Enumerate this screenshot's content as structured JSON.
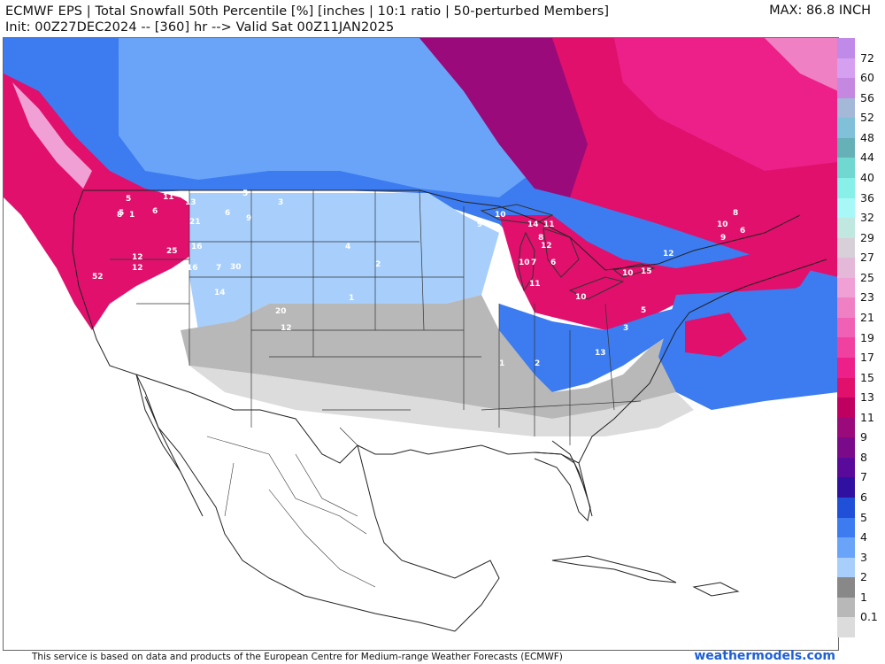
{
  "header": {
    "line1": "ECMWF EPS | Total Snowfall 50th Percentile [%] [inches | 10:1 ratio | 50-perturbed Members]",
    "line2": "Init: 00Z27DEC2024 -- [360] hr --> Valid Sat 00Z11JAN2025",
    "max_label": "MAX: 86.8 INCH"
  },
  "colorbar": {
    "labels": [
      "72",
      "60",
      "56",
      "52",
      "48",
      "44",
      "40",
      "36",
      "32",
      "29",
      "27",
      "25",
      "23",
      "21",
      "19",
      "17",
      "15",
      "13",
      "11",
      "9",
      "8",
      "7",
      "6",
      "5",
      "4",
      "3",
      "2",
      "1",
      "0.1"
    ],
    "colors": [
      "#c08ae8",
      "#d6a0f0",
      "#c488e0",
      "#a4b8d8",
      "#80c0d8",
      "#66b0b8",
      "#70d8d0",
      "#88f0e8",
      "#a8f8f8",
      "#c0e8e0",
      "#d8d0d8",
      "#e4b8d8",
      "#f0a0d4",
      "#f080c4",
      "#f060b4",
      "#f040a0",
      "#ec2088",
      "#e0106c",
      "#c00060",
      "#9a0a7a",
      "#7a0a8a",
      "#5a0a9a",
      "#3010a0",
      "#2050d8",
      "#3c7cf0",
      "#6aa4f8",
      "#a8cffc",
      "#888888",
      "#b8b8b8",
      "#dcdcdc"
    ]
  },
  "map": {
    "point_values": [
      {
        "v": "5"
      },
      {
        "v": "11"
      },
      {
        "v": "13"
      },
      {
        "v": "5"
      },
      {
        "v": "8"
      },
      {
        "v": "1"
      },
      {
        "v": "6"
      },
      {
        "v": "21"
      },
      {
        "v": "6"
      },
      {
        "v": "9"
      },
      {
        "v": "16"
      },
      {
        "v": "25"
      },
      {
        "v": "12"
      },
      {
        "v": "12"
      },
      {
        "v": "16"
      },
      {
        "v": "7"
      },
      {
        "v": "30"
      },
      {
        "v": "52"
      },
      {
        "v": "14"
      },
      {
        "v": "20"
      },
      {
        "v": "12"
      },
      {
        "v": "5"
      },
      {
        "v": "3"
      },
      {
        "v": "4"
      },
      {
        "v": "2"
      },
      {
        "v": "1"
      },
      {
        "v": "10"
      },
      {
        "v": "9"
      },
      {
        "v": "14"
      },
      {
        "v": "11"
      },
      {
        "v": "12"
      },
      {
        "v": "10"
      },
      {
        "v": "6"
      },
      {
        "v": "8"
      },
      {
        "v": "7"
      },
      {
        "v": "11"
      },
      {
        "v": "10"
      },
      {
        "v": "15"
      },
      {
        "v": "12"
      },
      {
        "v": "8"
      },
      {
        "v": "10"
      },
      {
        "v": "9"
      },
      {
        "v": "6"
      },
      {
        "v": "13"
      },
      {
        "v": "10"
      },
      {
        "v": "5"
      },
      {
        "v": "3"
      },
      {
        "v": "2"
      },
      {
        "v": "1"
      }
    ]
  },
  "footer": {
    "disclaimer": "This service is based on data and products of the European Centre for Medium-range Weather Forecasts (ECMWF)",
    "brand": "weathermodels.com"
  }
}
